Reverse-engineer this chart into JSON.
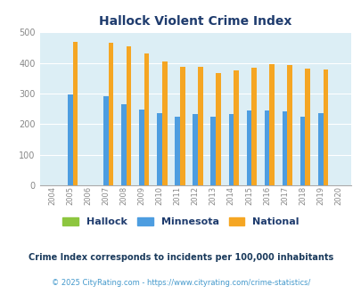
{
  "title": "Hallock Violent Crime Index",
  "years": [
    2004,
    2005,
    2006,
    2007,
    2008,
    2009,
    2010,
    2011,
    2012,
    2013,
    2014,
    2015,
    2016,
    2017,
    2018,
    2019,
    2020
  ],
  "hallock": [
    0,
    0,
    0,
    0,
    0,
    0,
    0,
    0,
    0,
    0,
    0,
    0,
    0,
    0,
    0,
    0,
    0
  ],
  "minnesota": [
    0,
    298,
    0,
    291,
    265,
    248,
    236,
    223,
    233,
    223,
    232,
    245,
    245,
    241,
    223,
    237,
    0
  ],
  "national": [
    0,
    469,
    0,
    467,
    455,
    431,
    405,
    387,
    387,
    368,
    376,
    383,
    397,
    394,
    381,
    379,
    0
  ],
  "colors": {
    "hallock": "#8dc63f",
    "minnesota": "#4d9de0",
    "national": "#f5a623"
  },
  "ylim": [
    0,
    500
  ],
  "yticks": [
    0,
    100,
    200,
    300,
    400,
    500
  ],
  "plot_bg": "#dceef5",
  "grid_color": "#ffffff",
  "title_color": "#1f3c6e",
  "tick_color": "#888888",
  "legend_labels": [
    "Hallock",
    "Minnesota",
    "National"
  ],
  "footnote1": "Crime Index corresponds to incidents per 100,000 inhabitants",
  "footnote2": "© 2025 CityRating.com - https://www.cityrating.com/crime-statistics/",
  "footnote1_color": "#1a3a5c",
  "footnote2_color": "#4499cc"
}
